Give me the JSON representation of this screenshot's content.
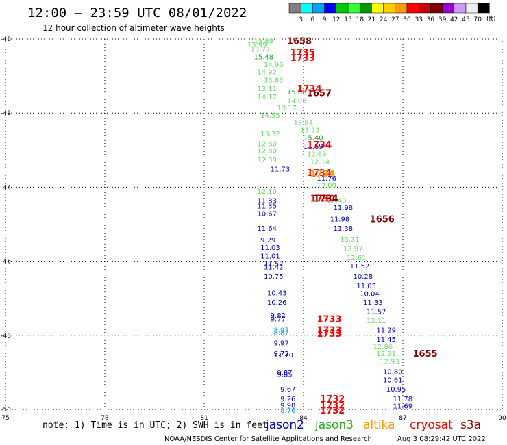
{
  "header": {
    "title": "12:00 – 23:59 UTC 08/01/2022",
    "subtitle": "12 hour collection of altimeter wave heights",
    "unit": "(ft)"
  },
  "colorbar": {
    "colors": [
      "#808080",
      "#00ffff",
      "#00a0ff",
      "#0000ff",
      "#00cc00",
      "#33ff33",
      "#009900",
      "#ffff00",
      "#ffcc00",
      "#ff9900",
      "#ff0000",
      "#cc0000",
      "#800000",
      "#9900cc",
      "#cc99ff",
      "#eeeeee",
      "#000000"
    ],
    "labels": [
      "3",
      "6",
      "9",
      "12",
      "15",
      "18",
      "21",
      "24",
      "27",
      "30",
      "33",
      "36",
      "39",
      "42",
      "45",
      "70"
    ]
  },
  "footer": {
    "note": "note: 1) Time is in UTC; 2) SWH is in feet",
    "credit": "NOAA/NESDIS Center for Satellite Applications and Research",
    "timestamp": "Aug  3 08:29:42 UTC 2022"
  },
  "legend": [
    {
      "name": "jason2",
      "color": "#0000cc"
    },
    {
      "name": "jason3",
      "color": "#22aa22"
    },
    {
      "name": "altika",
      "color": "#ff9900"
    },
    {
      "name": "cryosat",
      "color": "#ff0000"
    },
    {
      "name": "s3a",
      "color": "#990000"
    }
  ],
  "chart_data": {
    "type": "scatter",
    "xlim": [
      75,
      90
    ],
    "ylim": [
      -50,
      -40
    ],
    "x_ticks": [
      "75",
      "78",
      "81",
      "84",
      "87",
      "90"
    ],
    "y_ticks": [
      "-40",
      "-42",
      "-44",
      "-46",
      "-48",
      "-50"
    ],
    "grid": true,
    "colors": {
      "jason2": "#0000cc",
      "jason3": "#66dd66",
      "jason3_dark": "#22aa22",
      "altika": "#ff9900",
      "cryosat": "#ff0000",
      "s3a": "#880000",
      "cyan": "#1ea0e6"
    },
    "points": [
      {
        "x": 82.5,
        "y": -40.05,
        "label": "15.89",
        "c": "jason3"
      },
      {
        "x": 82.3,
        "y": -40.15,
        "label": "15.99",
        "c": "jason3"
      },
      {
        "x": 82.4,
        "y": -40.27,
        "label": "13.77",
        "c": "jason3"
      },
      {
        "x": 82.5,
        "y": -40.47,
        "label": "15.48",
        "c": "jason3_dark"
      },
      {
        "x": 82.8,
        "y": -40.68,
        "label": "14.96",
        "c": "jason3"
      },
      {
        "x": 82.6,
        "y": -40.88,
        "label": "14.92",
        "c": "jason3"
      },
      {
        "x": 82.8,
        "y": -41.1,
        "label": "13.83",
        "c": "jason3"
      },
      {
        "x": 82.6,
        "y": -41.33,
        "label": "13.11",
        "c": "jason3"
      },
      {
        "x": 83.5,
        "y": -41.42,
        "label": "15.68",
        "c": "jason3_dark"
      },
      {
        "x": 82.6,
        "y": -41.55,
        "label": "14.17",
        "c": "jason3"
      },
      {
        "x": 83.5,
        "y": -41.65,
        "label": "14.06",
        "c": "jason3"
      },
      {
        "x": 83.2,
        "y": -41.85,
        "label": "13.17",
        "c": "jason3"
      },
      {
        "x": 82.7,
        "y": -42.05,
        "label": "14.55",
        "c": "jason3"
      },
      {
        "x": 83.7,
        "y": -42.25,
        "label": "13.84",
        "c": "jason3"
      },
      {
        "x": 83.9,
        "y": -42.45,
        "label": "13.52",
        "c": "jason3"
      },
      {
        "x": 82.7,
        "y": -42.55,
        "label": "13.32",
        "c": "jason3"
      },
      {
        "x": 84.0,
        "y": -42.65,
        "label": "15.40",
        "c": "jason3_dark"
      },
      {
        "x": 82.6,
        "y": -42.82,
        "label": "12.80",
        "c": "jason3"
      },
      {
        "x": 84.0,
        "y": -42.88,
        "label": "11.69",
        "c": "jason2"
      },
      {
        "x": 82.6,
        "y": -43.0,
        "label": "12.80",
        "c": "jason3"
      },
      {
        "x": 84.1,
        "y": -43.1,
        "label": "12.69",
        "c": "jason3"
      },
      {
        "x": 82.6,
        "y": -43.25,
        "label": "12.39",
        "c": "jason3"
      },
      {
        "x": 84.2,
        "y": -43.3,
        "label": "12.14",
        "c": "jason3"
      },
      {
        "x": 83.0,
        "y": -43.5,
        "label": "11.73",
        "c": "jason2"
      },
      {
        "x": 84.4,
        "y": -43.75,
        "label": "11.76",
        "c": "jason2"
      },
      {
        "x": 84.4,
        "y": -43.95,
        "label": "12.09",
        "c": "jason3"
      },
      {
        "x": 82.6,
        "y": -44.1,
        "label": "12.10",
        "c": "jason3"
      },
      {
        "x": 84.7,
        "y": -44.35,
        "label": "12.40",
        "c": "jason3"
      },
      {
        "x": 82.6,
        "y": -44.35,
        "label": "11.83",
        "c": "jason2"
      },
      {
        "x": 82.6,
        "y": -44.5,
        "label": "11.35",
        "c": "jason2"
      },
      {
        "x": 84.9,
        "y": -44.55,
        "label": "11.98",
        "c": "jason2"
      },
      {
        "x": 82.6,
        "y": -44.7,
        "label": "10.67",
        "c": "jason2"
      },
      {
        "x": 84.8,
        "y": -44.85,
        "label": "11.98",
        "c": "jason2"
      },
      {
        "x": 82.6,
        "y": -45.1,
        "label": "11.64",
        "c": "jason2"
      },
      {
        "x": 84.9,
        "y": -45.1,
        "label": "11.38",
        "c": "jason2"
      },
      {
        "x": 85.1,
        "y": -45.4,
        "label": "13.31",
        "c": "jason3"
      },
      {
        "x": 82.7,
        "y": -45.42,
        "label": "9.29",
        "c": "jason2"
      },
      {
        "x": 82.7,
        "y": -45.62,
        "label": "11.03",
        "c": "jason2"
      },
      {
        "x": 85.2,
        "y": -45.65,
        "label": "12.97",
        "c": "jason3"
      },
      {
        "x": 82.7,
        "y": -45.85,
        "label": "11.01",
        "c": "jason2"
      },
      {
        "x": 85.3,
        "y": -45.9,
        "label": "12.61",
        "c": "jason3"
      },
      {
        "x": 82.8,
        "y": -46.05,
        "label": "11.52",
        "c": "jason2"
      },
      {
        "x": 82.8,
        "y": -46.15,
        "label": "11.42",
        "c": "jason2"
      },
      {
        "x": 85.4,
        "y": -46.12,
        "label": "11.52",
        "c": "jason2"
      },
      {
        "x": 82.8,
        "y": -46.4,
        "label": "10.75",
        "c": "jason2"
      },
      {
        "x": 85.5,
        "y": -46.4,
        "label": "10.28",
        "c": "jason2"
      },
      {
        "x": 85.6,
        "y": -46.65,
        "label": "11.05",
        "c": "jason2"
      },
      {
        "x": 82.9,
        "y": -46.85,
        "label": "10.43",
        "c": "jason2"
      },
      {
        "x": 85.7,
        "y": -46.87,
        "label": "10.04",
        "c": "jason2"
      },
      {
        "x": 82.9,
        "y": -47.1,
        "label": "10.26",
        "c": "jason2"
      },
      {
        "x": 85.8,
        "y": -47.1,
        "label": "11.33",
        "c": "jason2"
      },
      {
        "x": 85.9,
        "y": -47.35,
        "label": "11.57",
        "c": "jason2"
      },
      {
        "x": 83.0,
        "y": -47.45,
        "label": "9.82",
        "c": "jason2"
      },
      {
        "x": 85.9,
        "y": -47.6,
        "label": "13.11",
        "c": "jason3"
      },
      {
        "x": 83.0,
        "y": -47.55,
        "label": "9.77",
        "c": "jason2"
      },
      {
        "x": 83.1,
        "y": -47.85,
        "label": "8.97",
        "c": "cyan"
      },
      {
        "x": 83.1,
        "y": -47.92,
        "label": "8.87",
        "c": "cyan"
      },
      {
        "x": 86.2,
        "y": -47.85,
        "label": "11.29",
        "c": "jason2"
      },
      {
        "x": 86.2,
        "y": -48.1,
        "label": "11.45",
        "c": "jason2"
      },
      {
        "x": 83.1,
        "y": -48.2,
        "label": "9.97",
        "c": "jason2"
      },
      {
        "x": 86.1,
        "y": -48.3,
        "label": "12.86",
        "c": "jason3"
      },
      {
        "x": 86.2,
        "y": -48.48,
        "label": "12.91",
        "c": "jason3"
      },
      {
        "x": 83.1,
        "y": -48.48,
        "label": "9.72",
        "c": "jason2"
      },
      {
        "x": 83.1,
        "y": -48.52,
        "label": "11.70",
        "c": "jason2"
      },
      {
        "x": 86.3,
        "y": -48.7,
        "label": "12.93",
        "c": "jason3"
      },
      {
        "x": 86.4,
        "y": -48.97,
        "label": "10.80",
        "c": "jason2"
      },
      {
        "x": 83.2,
        "y": -49.0,
        "label": "9.87",
        "c": "jason2"
      },
      {
        "x": 83.2,
        "y": -49.05,
        "label": "9.85",
        "c": "jason2"
      },
      {
        "x": 86.4,
        "y": -49.2,
        "label": "10.61",
        "c": "jason2"
      },
      {
        "x": 86.5,
        "y": -49.45,
        "label": "10.95",
        "c": "jason2"
      },
      {
        "x": 83.3,
        "y": -49.45,
        "label": "9.67",
        "c": "jason2"
      },
      {
        "x": 83.3,
        "y": -49.7,
        "label": "9.26",
        "c": "jason2"
      },
      {
        "x": 86.7,
        "y": -49.7,
        "label": "11.78",
        "c": "jason2"
      },
      {
        "x": 83.3,
        "y": -49.88,
        "label": "9.98",
        "c": "jason2"
      },
      {
        "x": 86.7,
        "y": -49.9,
        "label": "11.69",
        "c": "jason2"
      },
      {
        "x": 83.3,
        "y": -50.02,
        "label": "8.76",
        "c": "cyan"
      }
    ],
    "time_labels": [
      {
        "x": 83.5,
        "y": -40.05,
        "label": "1658",
        "c": "s3a"
      },
      {
        "x": 83.6,
        "y": -40.35,
        "label": "1735",
        "c": "cryosat"
      },
      {
        "x": 83.6,
        "y": -40.5,
        "label": "1733",
        "c": "cryosat"
      },
      {
        "x": 83.8,
        "y": -41.33,
        "label": "1734",
        "c": "cryosat"
      },
      {
        "x": 84.1,
        "y": -41.45,
        "label": "1657",
        "c": "s3a"
      },
      {
        "x": 84.1,
        "y": -42.85,
        "label": "1734",
        "c": "cryosat"
      },
      {
        "x": 84.1,
        "y": -43.6,
        "label": "1734",
        "c": "cryosat"
      },
      {
        "x": 84.2,
        "y": -43.62,
        "label": "1734",
        "c": "altika"
      },
      {
        "x": 84.2,
        "y": -44.3,
        "label": "1730",
        "c": "cryosat"
      },
      {
        "x": 84.3,
        "y": -44.3,
        "label": "1734",
        "c": "s3a"
      },
      {
        "x": 86.0,
        "y": -44.85,
        "label": "1656",
        "c": "s3a"
      },
      {
        "x": 84.4,
        "y": -47.55,
        "label": "1733",
        "c": "cryosat"
      },
      {
        "x": 84.4,
        "y": -47.85,
        "label": "1733",
        "c": "cryosat"
      },
      {
        "x": 84.4,
        "y": -47.95,
        "label": "1733",
        "c": "cryosat"
      },
      {
        "x": 87.3,
        "y": -48.48,
        "label": "1655",
        "c": "s3a"
      },
      {
        "x": 84.5,
        "y": -49.7,
        "label": "1732",
        "c": "cryosat"
      },
      {
        "x": 84.5,
        "y": -49.88,
        "label": "1732",
        "c": "cryosat"
      },
      {
        "x": 84.5,
        "y": -50.02,
        "label": "1732",
        "c": "cryosat"
      }
    ]
  }
}
